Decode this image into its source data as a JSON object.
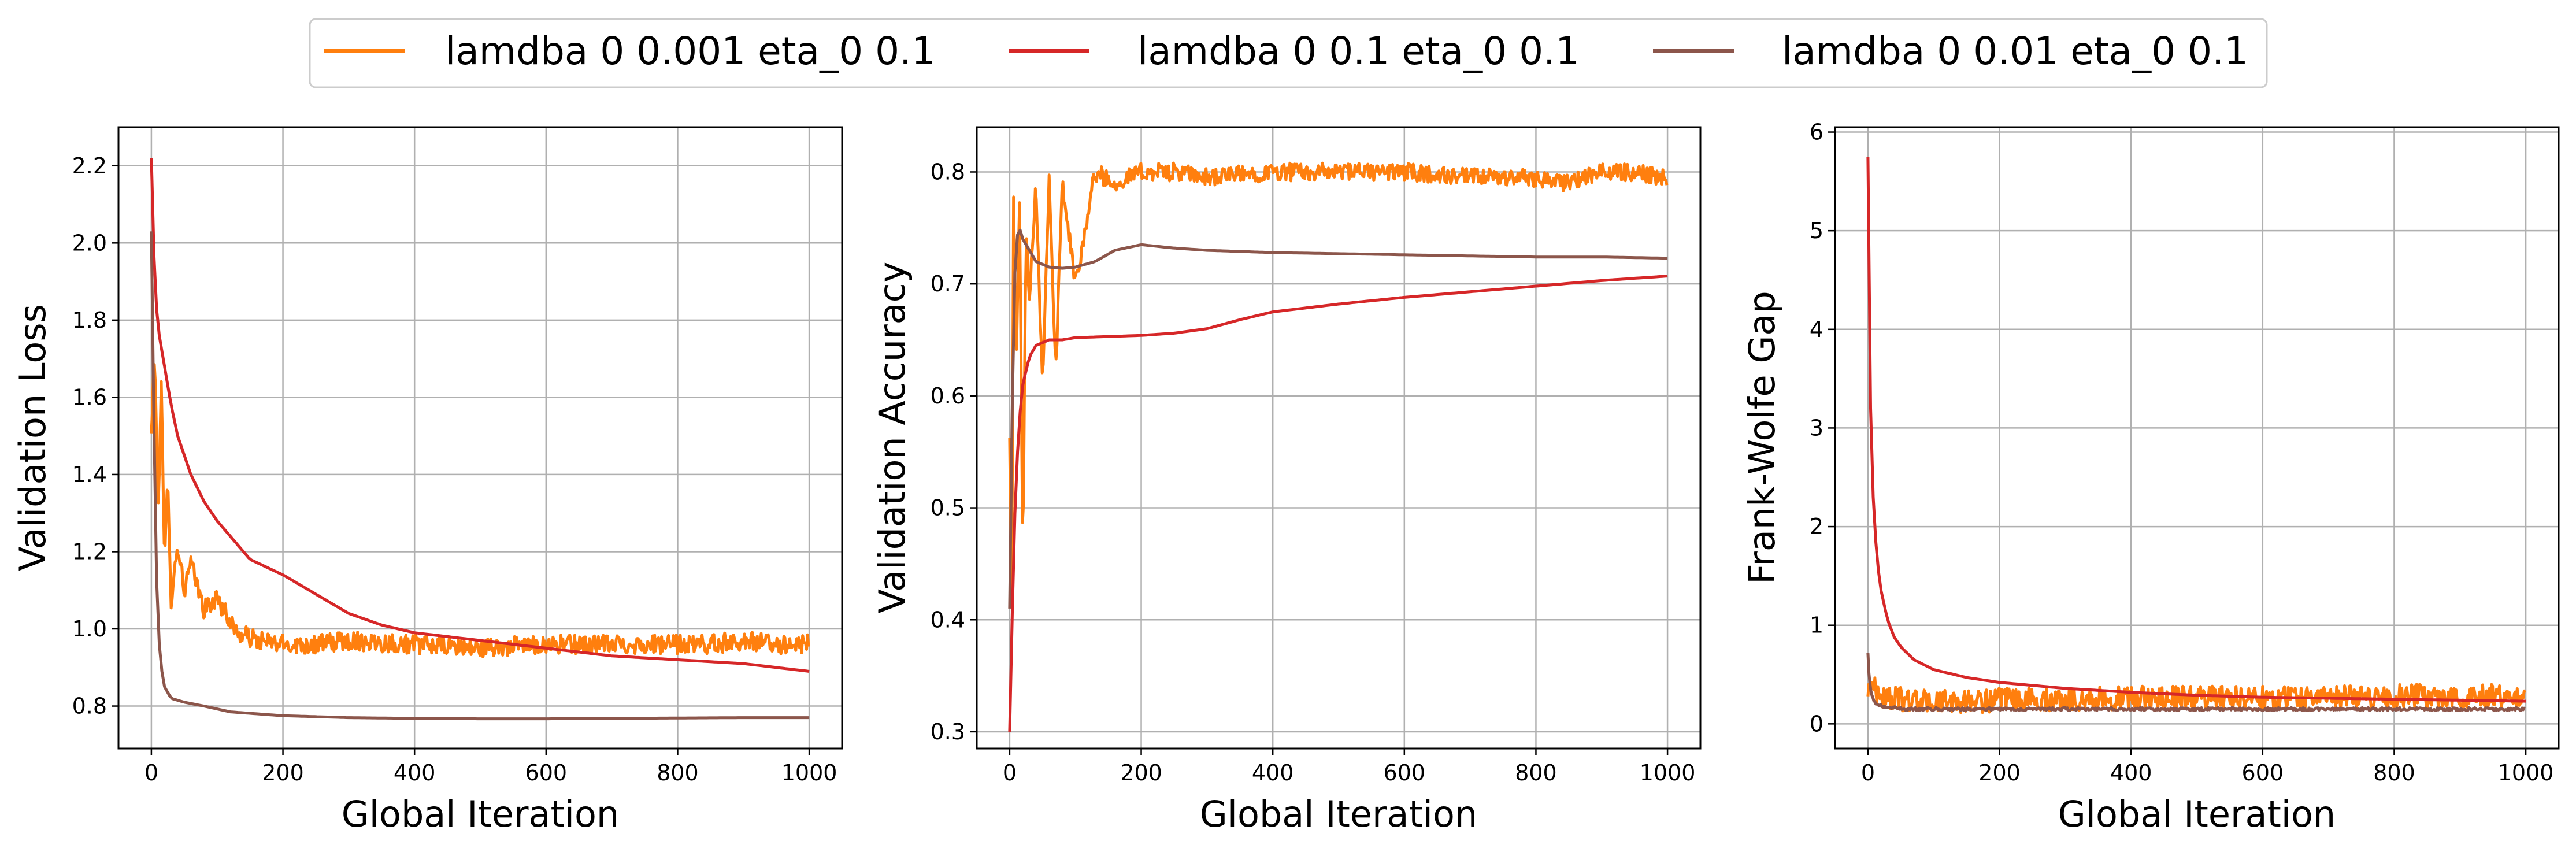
{
  "figure": {
    "legend": {
      "placement": "top-center",
      "entries": [
        {
          "label": "lamdba 0 0.001 eta_0 0.1",
          "color": "#ff7f0e"
        },
        {
          "label": "lamdba 0 0.1 eta_0 0.1",
          "color": "#d62728"
        },
        {
          "label": "lamdba 0 0.01 eta_0 0.1",
          "color": "#8c564b"
        }
      ]
    }
  },
  "chart_data": [
    {
      "type": "line",
      "title": "",
      "xlabel": "Global Iteration",
      "ylabel": "Validation Loss",
      "xlim": [
        -50,
        1050
      ],
      "ylim": [
        0.69,
        2.3
      ],
      "xticks": [
        0,
        200,
        400,
        600,
        800,
        1000
      ],
      "yticks": [
        0.8,
        1.0,
        1.2,
        1.4,
        1.6,
        1.8,
        2.0,
        2.2
      ],
      "grid": true,
      "series": [
        {
          "name": "lamdba 0 0.001 eta_0 0.1",
          "color": "#ff7f0e",
          "x": [
            0,
            5,
            10,
            15,
            20,
            25,
            30,
            40,
            50,
            60,
            80,
            100,
            130,
            160,
            200,
            250,
            300,
            400,
            500,
            600,
            700,
            800,
            850,
            900,
            950,
            1000
          ],
          "y": [
            1.5,
            1.73,
            1.28,
            1.65,
            1.15,
            1.41,
            1.07,
            1.22,
            1.1,
            1.17,
            1.05,
            1.08,
            0.99,
            0.97,
            0.96,
            0.96,
            0.97,
            0.96,
            0.95,
            0.96,
            0.96,
            0.96,
            0.96,
            0.97,
            0.96,
            0.96
          ],
          "noise": 0.025
        },
        {
          "name": "lamdba 0 0.1 eta_0 0.1",
          "color": "#d62728",
          "x": [
            0,
            5,
            10,
            20,
            30,
            40,
            60,
            80,
            100,
            150,
            200,
            250,
            300,
            350,
            400,
            500,
            600,
            700,
            800,
            900,
            1000
          ],
          "y": [
            2.22,
            1.9,
            1.78,
            1.68,
            1.58,
            1.5,
            1.4,
            1.33,
            1.28,
            1.18,
            1.14,
            1.09,
            1.04,
            1.01,
            0.99,
            0.97,
            0.95,
            0.93,
            0.92,
            0.91,
            0.89
          ],
          "noise": 0
        },
        {
          "name": "lamdba 0 0.01 eta_0 0.1",
          "color": "#8c564b",
          "x": [
            0,
            3,
            6,
            10,
            15,
            20,
            30,
            50,
            80,
            120,
            200,
            300,
            400,
            500,
            600,
            700,
            800,
            900,
            1000
          ],
          "y": [
            2.03,
            1.65,
            1.25,
            1.0,
            0.9,
            0.85,
            0.82,
            0.81,
            0.8,
            0.785,
            0.775,
            0.77,
            0.768,
            0.767,
            0.767,
            0.768,
            0.769,
            0.77,
            0.77
          ],
          "noise": 0
        }
      ]
    },
    {
      "type": "line",
      "title": "",
      "xlabel": "Global Iteration",
      "ylabel": "Validation Accuracy",
      "xlim": [
        -50,
        1050
      ],
      "ylim": [
        0.285,
        0.84
      ],
      "xticks": [
        0,
        200,
        400,
        600,
        800,
        1000
      ],
      "yticks": [
        0.3,
        0.4,
        0.5,
        0.6,
        0.7,
        0.8
      ],
      "grid": true,
      "series": [
        {
          "name": "lamdba 0 0.001 eta_0 0.1",
          "color": "#ff7f0e",
          "x": [
            0,
            3,
            6,
            10,
            15,
            20,
            25,
            30,
            40,
            50,
            60,
            70,
            80,
            100,
            130,
            160,
            200,
            250,
            300,
            400,
            500,
            600,
            700,
            800,
            850,
            900,
            950,
            1000
          ],
          "y": [
            0.57,
            0.41,
            0.77,
            0.62,
            0.78,
            0.45,
            0.75,
            0.69,
            0.79,
            0.61,
            0.8,
            0.62,
            0.79,
            0.7,
            0.8,
            0.79,
            0.8,
            0.8,
            0.795,
            0.8,
            0.8,
            0.8,
            0.795,
            0.795,
            0.79,
            0.8,
            0.8,
            0.795
          ],
          "noise": 0.008
        },
        {
          "name": "lamdba 0 0.1 eta_0 0.1",
          "color": "#d62728",
          "x": [
            0,
            3,
            6,
            10,
            15,
            20,
            30,
            40,
            60,
            80,
            100,
            150,
            200,
            250,
            300,
            350,
            400,
            500,
            600,
            700,
            800,
            900,
            1000
          ],
          "y": [
            0.3,
            0.38,
            0.46,
            0.53,
            0.58,
            0.61,
            0.635,
            0.645,
            0.65,
            0.65,
            0.652,
            0.653,
            0.654,
            0.656,
            0.66,
            0.668,
            0.675,
            0.682,
            0.688,
            0.693,
            0.698,
            0.703,
            0.707
          ],
          "noise": 0
        },
        {
          "name": "lamdba 0 0.01 eta_0 0.1",
          "color": "#8c564b",
          "x": [
            0,
            3,
            6,
            10,
            15,
            20,
            30,
            40,
            60,
            80,
            100,
            130,
            160,
            200,
            250,
            300,
            400,
            500,
            600,
            700,
            800,
            900,
            1000
          ],
          "y": [
            0.41,
            0.55,
            0.68,
            0.74,
            0.75,
            0.74,
            0.73,
            0.72,
            0.715,
            0.714,
            0.715,
            0.72,
            0.73,
            0.735,
            0.732,
            0.73,
            0.728,
            0.727,
            0.726,
            0.725,
            0.724,
            0.724,
            0.723
          ],
          "noise": 0
        }
      ]
    },
    {
      "type": "line",
      "title": "",
      "xlabel": "Global Iteration",
      "ylabel": "Frank-Wolfe Gap",
      "xlim": [
        -50,
        1050
      ],
      "ylim": [
        -0.25,
        6.05
      ],
      "xticks": [
        0,
        200,
        400,
        600,
        800,
        1000
      ],
      "yticks": [
        0,
        1,
        2,
        3,
        4,
        5,
        6
      ],
      "grid": true,
      "series": [
        {
          "name": "lamdba 0 0.001 eta_0 0.1",
          "color": "#ff7f0e",
          "x": [
            0,
            5,
            10,
            20,
            50,
            100,
            200,
            300,
            400,
            500,
            600,
            700,
            800,
            900,
            1000
          ],
          "y": [
            0.3,
            0.45,
            0.35,
            0.28,
            0.25,
            0.22,
            0.24,
            0.25,
            0.26,
            0.27,
            0.27,
            0.27,
            0.28,
            0.28,
            0.28
          ],
          "noise": 0.12
        },
        {
          "name": "lamdba 0 0.1 eta_0 0.1",
          "color": "#d62728",
          "x": [
            0,
            2,
            4,
            6,
            10,
            15,
            20,
            30,
            40,
            50,
            70,
            100,
            150,
            200,
            300,
            400,
            500,
            600,
            700,
            800,
            900,
            1000
          ],
          "y": [
            5.75,
            4.2,
            3.2,
            2.6,
            2.0,
            1.6,
            1.35,
            1.05,
            0.88,
            0.78,
            0.65,
            0.55,
            0.47,
            0.42,
            0.36,
            0.32,
            0.29,
            0.27,
            0.26,
            0.25,
            0.24,
            0.23
          ],
          "noise": 0
        },
        {
          "name": "lamdba 0 0.01 eta_0 0.1",
          "color": "#8c564b",
          "x": [
            0,
            2,
            5,
            10,
            20,
            40,
            60,
            100,
            200,
            400,
            600,
            800,
            1000
          ],
          "y": [
            0.72,
            0.45,
            0.3,
            0.22,
            0.18,
            0.16,
            0.15,
            0.15,
            0.15,
            0.15,
            0.15,
            0.15,
            0.15
          ],
          "noise": 0.015
        }
      ]
    }
  ]
}
